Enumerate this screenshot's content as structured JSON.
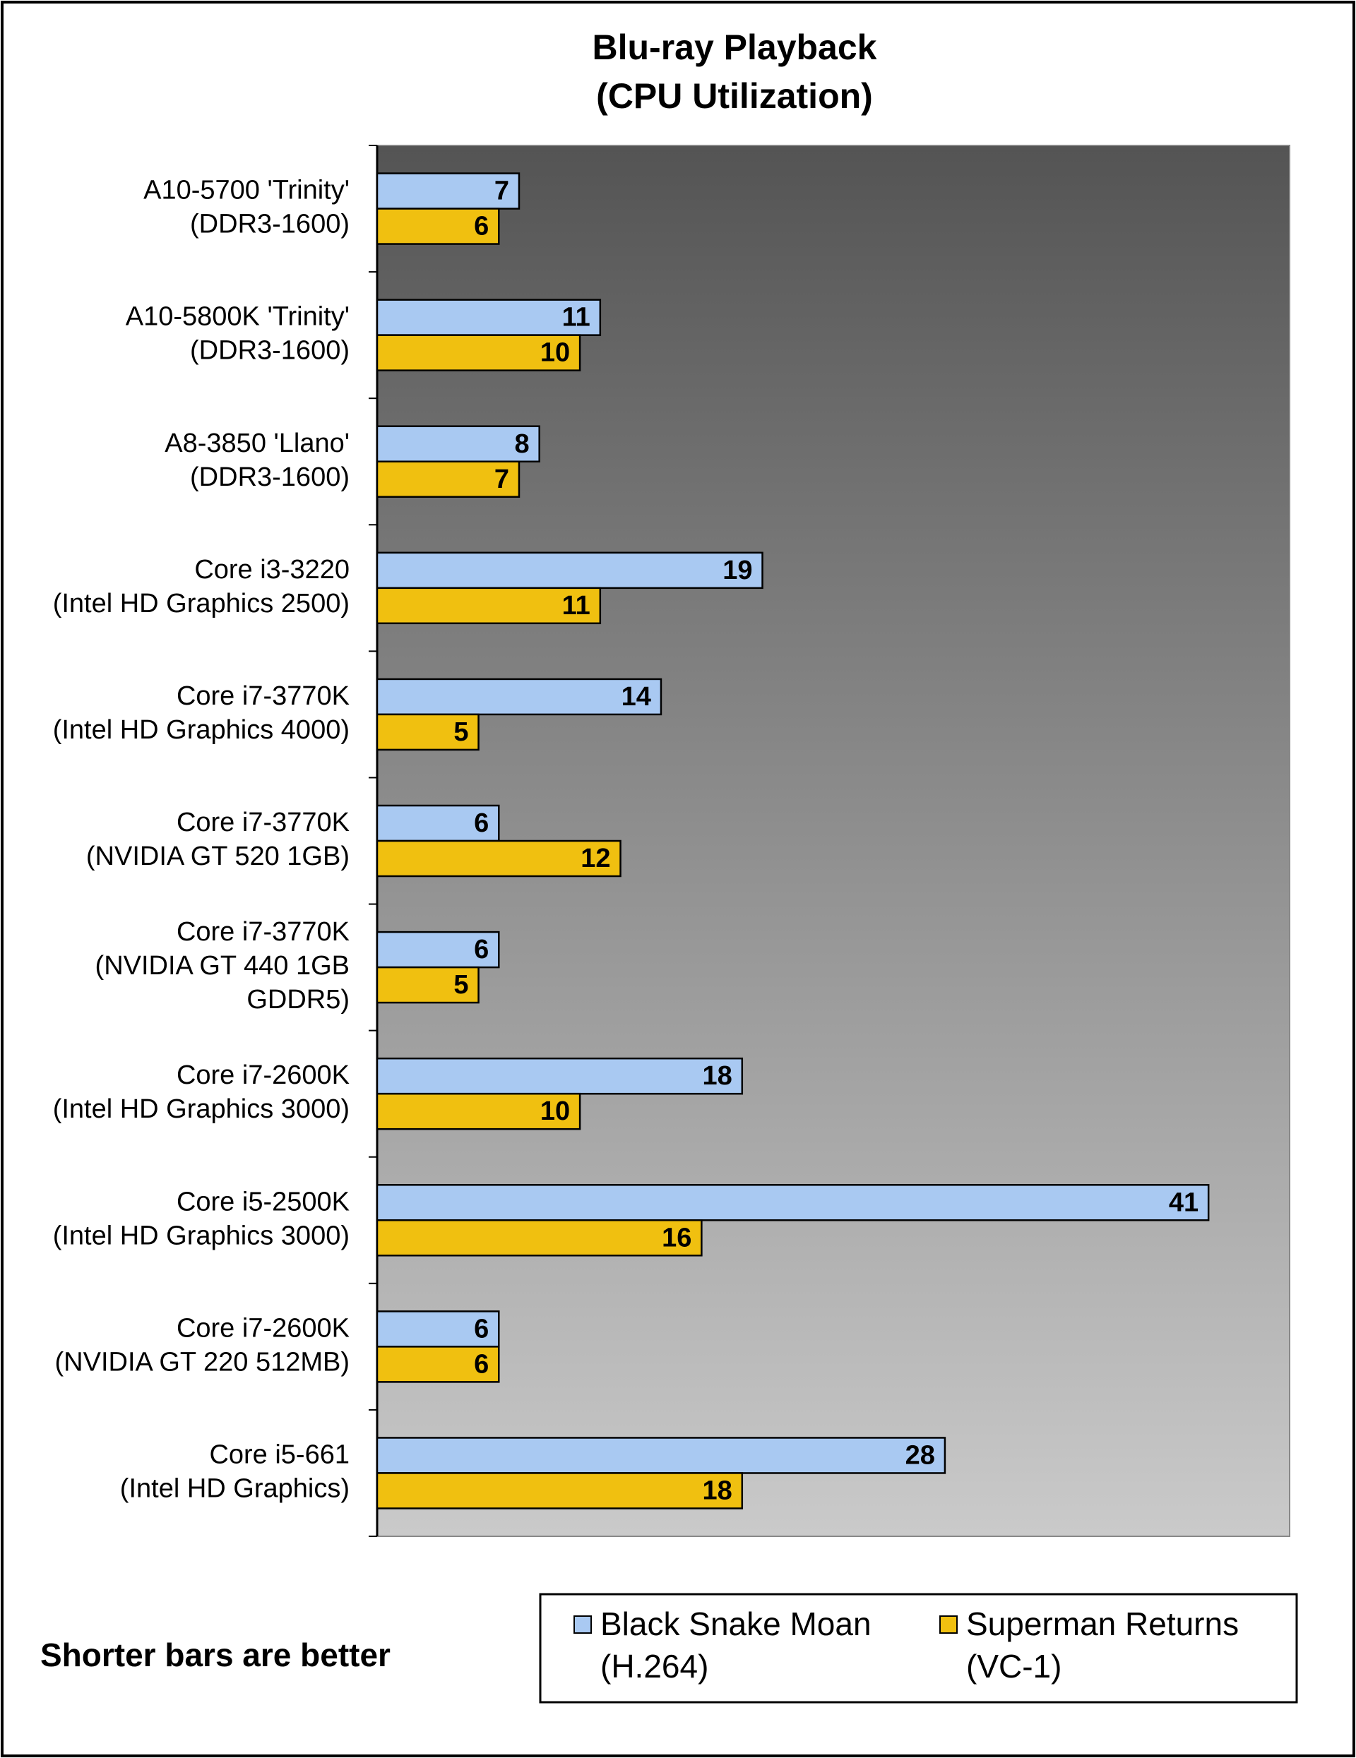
{
  "chart_data": {
    "type": "hbar",
    "title": [
      "Blu-ray  Playback",
      "(CPU Utilization)"
    ],
    "annotation": "Shorter bars are better",
    "categories": [
      [
        "A10-5700 'Trinity'",
        "(DDR3-1600)"
      ],
      [
        "A10-5800K 'Trinity'",
        "(DDR3-1600)"
      ],
      [
        "A8-3850 'Llano'",
        "(DDR3-1600)"
      ],
      [
        "Core i3-3220",
        "(Intel HD Graphics 2500)"
      ],
      [
        "Core i7-3770K",
        "(Intel HD Graphics 4000)"
      ],
      [
        "Core i7-3770K",
        "(NVIDIA GT 520 1GB)"
      ],
      [
        "Core i7-3770K",
        "(NVIDIA GT 440 1GB",
        "GDDR5)"
      ],
      [
        "Core i7-2600K",
        "(Intel HD Graphics 3000)"
      ],
      [
        "Core i5-2500K",
        "(Intel HD Graphics 3000)"
      ],
      [
        "Core i7-2600K",
        "(NVIDIA GT 220 512MB)"
      ],
      [
        "Core i5-661",
        "(Intel HD Graphics)"
      ]
    ],
    "series": [
      {
        "name": "Black Snake Moan (H.264)",
        "color": "#a9c9f2",
        "values": [
          7,
          11,
          8,
          19,
          14,
          6,
          6,
          18,
          41,
          6,
          28
        ]
      },
      {
        "name": "Superman Returns (VC-1)",
        "color": "#f0c010",
        "values": [
          6,
          10,
          7,
          11,
          5,
          12,
          5,
          10,
          16,
          6,
          18
        ]
      }
    ],
    "xlim": [
      0,
      45
    ],
    "legend": "bottom-right"
  }
}
